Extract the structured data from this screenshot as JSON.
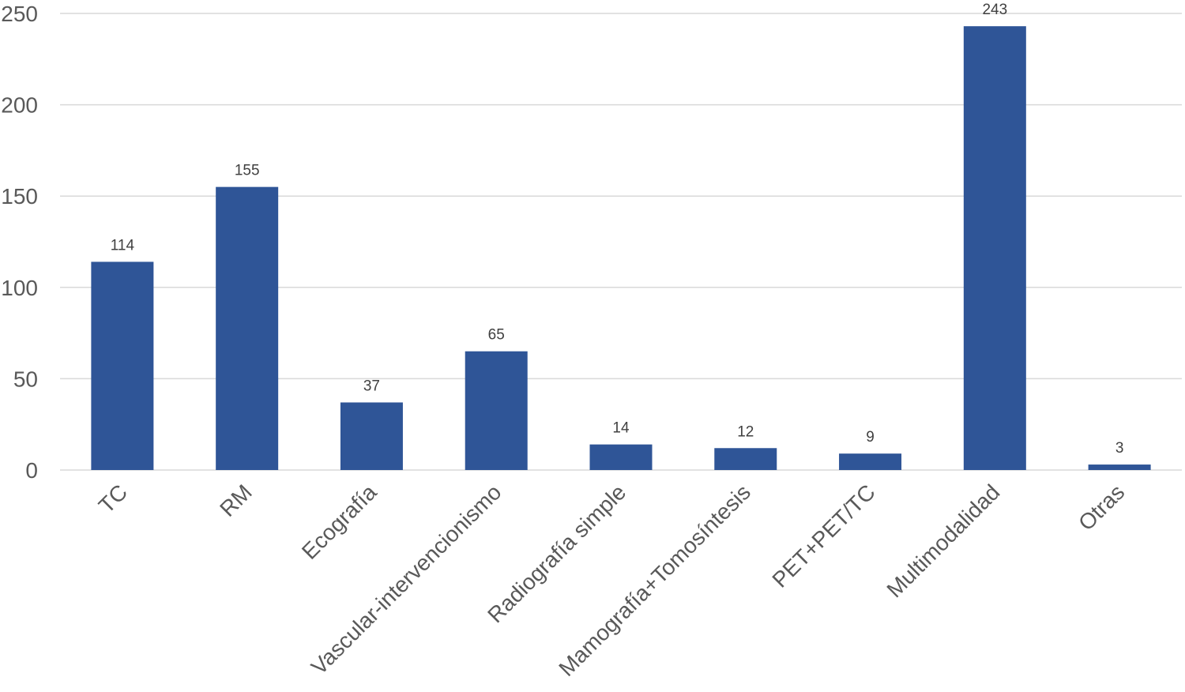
{
  "chart_data": {
    "type": "bar",
    "title": "",
    "xlabel": "",
    "ylabel": "",
    "categories": [
      "TC",
      "RM",
      "Ecografía",
      "Vascular-intervencionismo",
      "Radiografía simple",
      "Mamografía+Tomosíntesis",
      "PET+PET/TC",
      "Multimodalidad",
      "Otras"
    ],
    "values": [
      114,
      155,
      37,
      65,
      14,
      12,
      9,
      243,
      3
    ],
    "ylim": [
      0,
      250
    ],
    "yticks": [
      0,
      50,
      100,
      150,
      200,
      250
    ],
    "grid": true,
    "legend": "none",
    "bar_color": "#2F5597"
  }
}
